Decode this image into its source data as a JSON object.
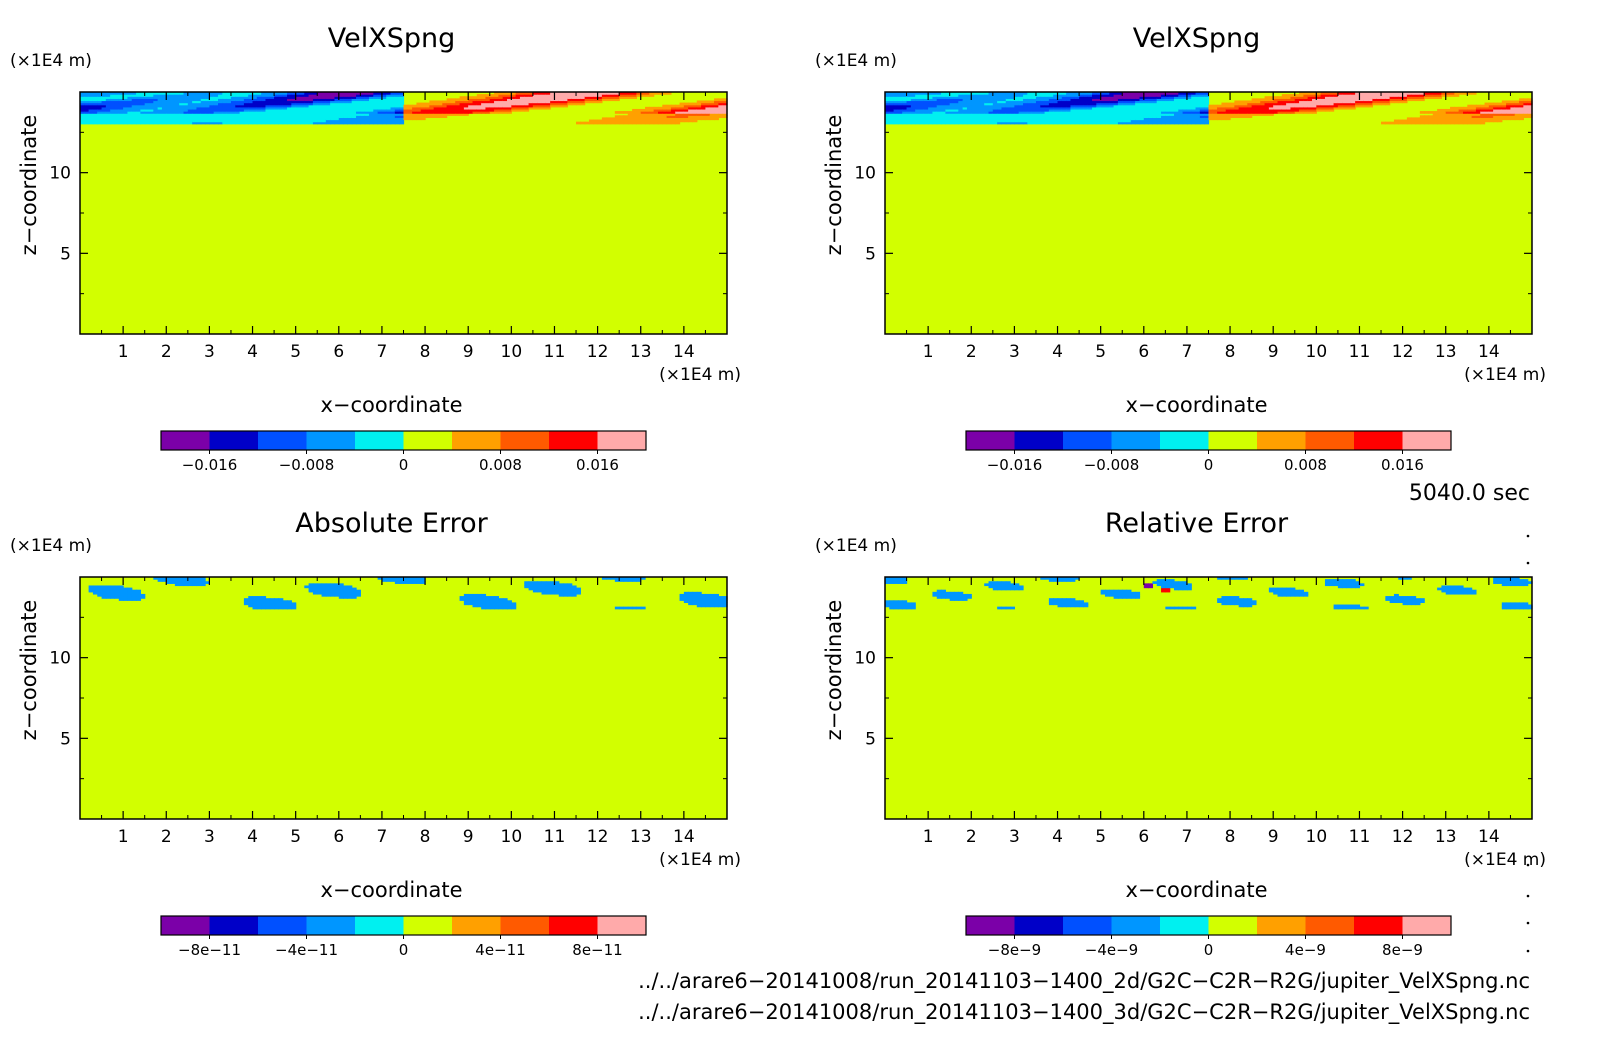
{
  "chart_data": [
    {
      "type": "heatmap",
      "title": "VelXSpng",
      "xlabel": "x−coordinate",
      "ylabel": "z−coordinate",
      "x_unit": "(×1E4 m)",
      "y_unit": "(×1E4 m)",
      "xlim": [
        0,
        15
      ],
      "ylim": [
        0,
        15
      ],
      "xticks": [
        "1",
        "2",
        "3",
        "4",
        "5",
        "6",
        "7",
        "8",
        "9",
        "10",
        "11",
        "12",
        "13",
        "14"
      ],
      "yticks": [
        "5",
        "10"
      ],
      "colorbar": {
        "levels": [
          -0.02,
          -0.016,
          -0.012,
          -0.008,
          -0.004,
          0,
          0.004,
          0.008,
          0.012,
          0.016,
          0.02
        ],
        "tick_labels": [
          "−0.016",
          "−0.008",
          "0",
          "0.008",
          "0.016"
        ]
      },
      "field": "wave"
    },
    {
      "type": "heatmap",
      "title": "VelXSpng",
      "xlabel": "x−coordinate",
      "ylabel": "z−coordinate",
      "x_unit": "(×1E4 m)",
      "y_unit": "(×1E4 m)",
      "xlim": [
        0,
        15
      ],
      "ylim": [
        0,
        15
      ],
      "xticks": [
        "1",
        "2",
        "3",
        "4",
        "5",
        "6",
        "7",
        "8",
        "9",
        "10",
        "11",
        "12",
        "13",
        "14"
      ],
      "yticks": [
        "5",
        "10"
      ],
      "colorbar": {
        "levels": [
          -0.02,
          -0.016,
          -0.012,
          -0.008,
          -0.004,
          0,
          0.004,
          0.008,
          0.012,
          0.016,
          0.02
        ],
        "tick_labels": [
          "−0.016",
          "−0.008",
          "0",
          "0.008",
          "0.016"
        ]
      },
      "field": "wave"
    },
    {
      "type": "heatmap",
      "title": "Absolute Error",
      "xlabel": "x−coordinate",
      "ylabel": "z−coordinate",
      "x_unit": "(×1E4 m)",
      "y_unit": "(×1E4 m)",
      "xlim": [
        0,
        15
      ],
      "ylim": [
        0,
        15
      ],
      "xticks": [
        "1",
        "2",
        "3",
        "4",
        "5",
        "6",
        "7",
        "8",
        "9",
        "10",
        "11",
        "12",
        "13",
        "14"
      ],
      "yticks": [
        "5",
        "10"
      ],
      "colorbar": {
        "levels": [
          -1e-10,
          -8e-11,
          -6e-11,
          -4e-11,
          -2e-11,
          0,
          2e-11,
          4e-11,
          6e-11,
          8e-11,
          1e-10
        ],
        "tick_labels": [
          "−8e−11",
          "−4e−11",
          "0",
          "4e−11",
          "8e−11"
        ]
      },
      "field": "error"
    },
    {
      "type": "heatmap",
      "title": "Relative Error",
      "xlabel": "x−coordinate",
      "ylabel": "z−coordinate",
      "x_unit": "(×1E4 m)",
      "y_unit": "(×1E4 m)",
      "xlim": [
        0,
        15
      ],
      "ylim": [
        0,
        15
      ],
      "xticks": [
        "1",
        "2",
        "3",
        "4",
        "5",
        "6",
        "7",
        "8",
        "9",
        "10",
        "11",
        "12",
        "13",
        "14"
      ],
      "yticks": [
        "5",
        "10"
      ],
      "colorbar": {
        "levels": [
          -1e-08,
          -8e-09,
          -6e-09,
          -4e-09,
          -2e-09,
          0,
          2e-09,
          4e-09,
          6e-09,
          8e-09,
          1e-08
        ],
        "tick_labels": [
          "−8e−9",
          "−4e−9",
          "0",
          "4e−9",
          "8e−9"
        ]
      },
      "field": "relerror"
    }
  ],
  "palette": [
    "#7b00a8",
    "#0000c8",
    "#0050ff",
    "#0096ff",
    "#00f0f0",
    "#d2ff00",
    "#ffa000",
    "#ff5a00",
    "#ff0000",
    "#ffaaaa"
  ],
  "time_label": "5040.0 sec",
  "file_paths": [
    "../../arare6−20141008/run_20141103−1400_2d/G2C−C2R−R2G/jupiter_VelXSpng.nc",
    "../../arare6−20141008/run_20141103−1400_3d/G2C−C2R−R2G/jupiter_VelXSpng.nc"
  ]
}
